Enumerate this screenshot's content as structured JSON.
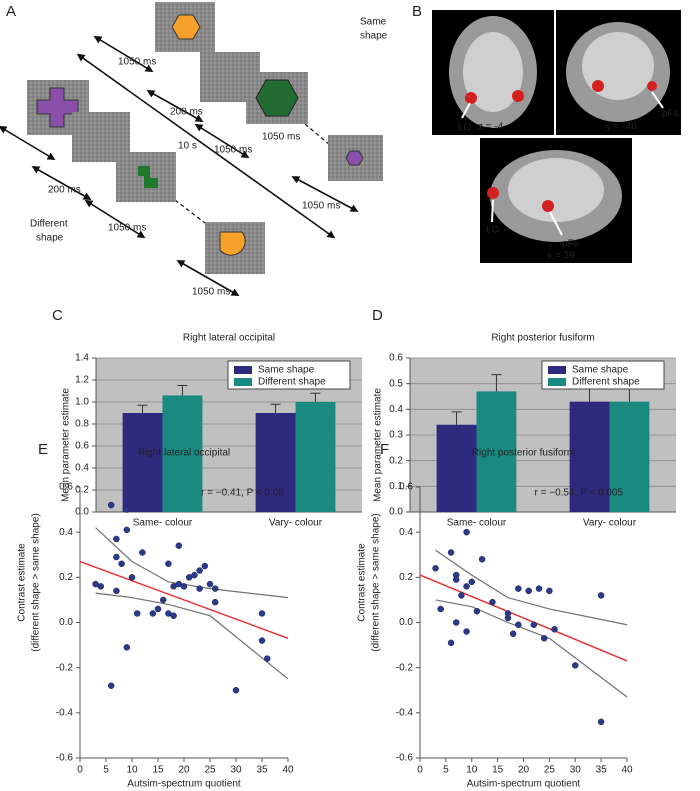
{
  "panels": {
    "A": {
      "label": "A",
      "texts": [
        "Same",
        "shape",
        "1050 ms",
        "200 ms",
        "1050 ms",
        "10 s",
        "1050 ms",
        "1050 ms",
        "200 ms",
        "1050 ms",
        "Different",
        "shape",
        "1050 ms"
      ]
    },
    "B": {
      "label": "B",
      "texts": [
        "LO",
        "z = -4",
        "y = -46",
        "pFs",
        "LO",
        "pFs",
        "x = 39"
      ]
    }
  },
  "chart_data": [
    {
      "type": "bar",
      "label": "C",
      "title": "Right lateral occipital",
      "ylabel": "Mean parameter estimate",
      "categories": [
        "Same- colour",
        "Vary- colour"
      ],
      "series": [
        {
          "name": "Same shape",
          "color": "#2e2a7e",
          "values": [
            0.9,
            0.9
          ],
          "errors": [
            0.07,
            0.08
          ]
        },
        {
          "name": "Different shape",
          "color": "#1a8a80",
          "values": [
            1.06,
            1.0
          ],
          "errors": [
            0.09,
            0.08
          ]
        }
      ],
      "ylim": [
        0,
        1.4
      ],
      "yticks": [
        {
          "value": 0,
          "label": "0.0"
        },
        0.2,
        0.4,
        0.6,
        0.8,
        {
          "value": 1,
          "label": "1.0"
        },
        1.2,
        1.4
      ],
      "grid": true,
      "legend": "top-right"
    },
    {
      "type": "bar",
      "label": "D",
      "title": "Right posterior fusiform",
      "ylabel": "Mean parameter estimate",
      "categories": [
        "Same- colour",
        "Vary- colour"
      ],
      "series": [
        {
          "name": "Same shape",
          "color": "#2e2a7e",
          "values": [
            0.34,
            0.43
          ],
          "errors": [
            0.05,
            0.05
          ]
        },
        {
          "name": "Different shape",
          "color": "#1a8a80",
          "values": [
            0.47,
            0.43
          ],
          "errors": [
            0.065,
            0.05
          ]
        }
      ],
      "ylim": [
        0,
        0.6
      ],
      "yticks": [
        {
          "value": 0,
          "label": "0.0"
        },
        0.1,
        0.2,
        0.3,
        0.4,
        0.5,
        0.6
      ],
      "grid": true,
      "legend": "top-right"
    },
    {
      "type": "scatter",
      "label": "E",
      "title": "Right lateral occipital",
      "annotation": "r = −0.41, P < 0.05",
      "xlabel": "Autsim-spectrum quotient",
      "ylabel": [
        "Contrast estimate",
        "(different shape > same shape)"
      ],
      "color": "#2b3a8c",
      "x": [
        3,
        4,
        6,
        6,
        7,
        7,
        7,
        8,
        9,
        9,
        9,
        10,
        11,
        12,
        14,
        15,
        16,
        17,
        17,
        18,
        18,
        19,
        19,
        20,
        21,
        22,
        23,
        23,
        24,
        25,
        26,
        26,
        30,
        35,
        35,
        36
      ],
      "values": [
        0.17,
        0.16,
        0.52,
        -0.28,
        0.37,
        0.29,
        0.14,
        0.26,
        0.5,
        0.41,
        -0.11,
        0.2,
        0.04,
        0.31,
        0.04,
        0.06,
        0.1,
        0.26,
        0.04,
        0.03,
        0.16,
        0.34,
        0.17,
        0.16,
        0.2,
        0.21,
        0.15,
        0.23,
        0.25,
        0.17,
        0.09,
        0.15,
        -0.3,
        0.04,
        -0.08,
        -0.16
      ],
      "fit": {
        "color": "#e83030",
        "x": [
          0,
          40
        ],
        "values": [
          0.27,
          -0.07
        ]
      },
      "ci_upper": {
        "color": "#707070",
        "x": [
          3,
          10,
          17,
          25,
          40
        ],
        "values": [
          0.42,
          0.27,
          0.18,
          0.15,
          0.11
        ]
      },
      "ci_lower": {
        "color": "#707070",
        "x": [
          3,
          10,
          17,
          25,
          40
        ],
        "values": [
          0.13,
          0.11,
          0.08,
          0.03,
          -0.25
        ]
      },
      "xlim": [
        0,
        40
      ],
      "xticks": [
        0,
        5,
        10,
        15,
        20,
        25,
        30,
        35,
        40
      ],
      "ylim": [
        -0.6,
        0.6
      ],
      "yticks": [
        -0.6,
        -0.4,
        -0.2,
        {
          "value": 0,
          "label": "0.0"
        },
        0.2,
        0.4,
        0.6
      ]
    },
    {
      "type": "scatter",
      "label": "F",
      "title": "Right posterior fusiform",
      "annotation": "r = −0.54, P < 0.005",
      "xlabel": "Autsim-spectrum quotient",
      "ylabel": [
        "Contrast estimate",
        "(different shape > same shape)"
      ],
      "color": "#2b3a8c",
      "x": [
        3,
        4,
        6,
        6,
        7,
        7,
        7,
        8,
        9,
        9,
        9,
        10,
        11,
        12,
        14,
        17,
        17,
        18,
        19,
        19,
        21,
        22,
        23,
        24,
        25,
        26,
        30,
        35,
        35
      ],
      "values": [
        0.24,
        0.06,
        0.31,
        -0.09,
        0.21,
        0.19,
        0.0,
        0.12,
        0.4,
        0.16,
        -0.04,
        0.18,
        0.05,
        0.28,
        0.09,
        0.02,
        0.04,
        -0.05,
        0.15,
        -0.01,
        0.14,
        -0.01,
        0.15,
        -0.07,
        0.14,
        -0.03,
        -0.19,
        0.12,
        -0.44
      ],
      "fit": {
        "color": "#e83030",
        "x": [
          0,
          40
        ],
        "values": [
          0.21,
          -0.17
        ]
      },
      "ci_upper": {
        "color": "#707070",
        "x": [
          3,
          10,
          17,
          25,
          40
        ],
        "values": [
          0.32,
          0.21,
          0.11,
          0.06,
          -0.01
        ]
      },
      "ci_lower": {
        "color": "#707070",
        "x": [
          3,
          10,
          17,
          25,
          40
        ],
        "values": [
          0.1,
          0.07,
          0.0,
          -0.07,
          -0.33
        ]
      },
      "xlim": [
        0,
        40
      ],
      "xticks": [
        0,
        5,
        10,
        15,
        20,
        25,
        30,
        35,
        40
      ],
      "ylim": [
        -0.6,
        0.6
      ],
      "yticks": [
        -0.6,
        -0.4,
        -0.2,
        {
          "value": 0,
          "label": "0.0"
        },
        0.2,
        0.4,
        0.6
      ]
    }
  ]
}
